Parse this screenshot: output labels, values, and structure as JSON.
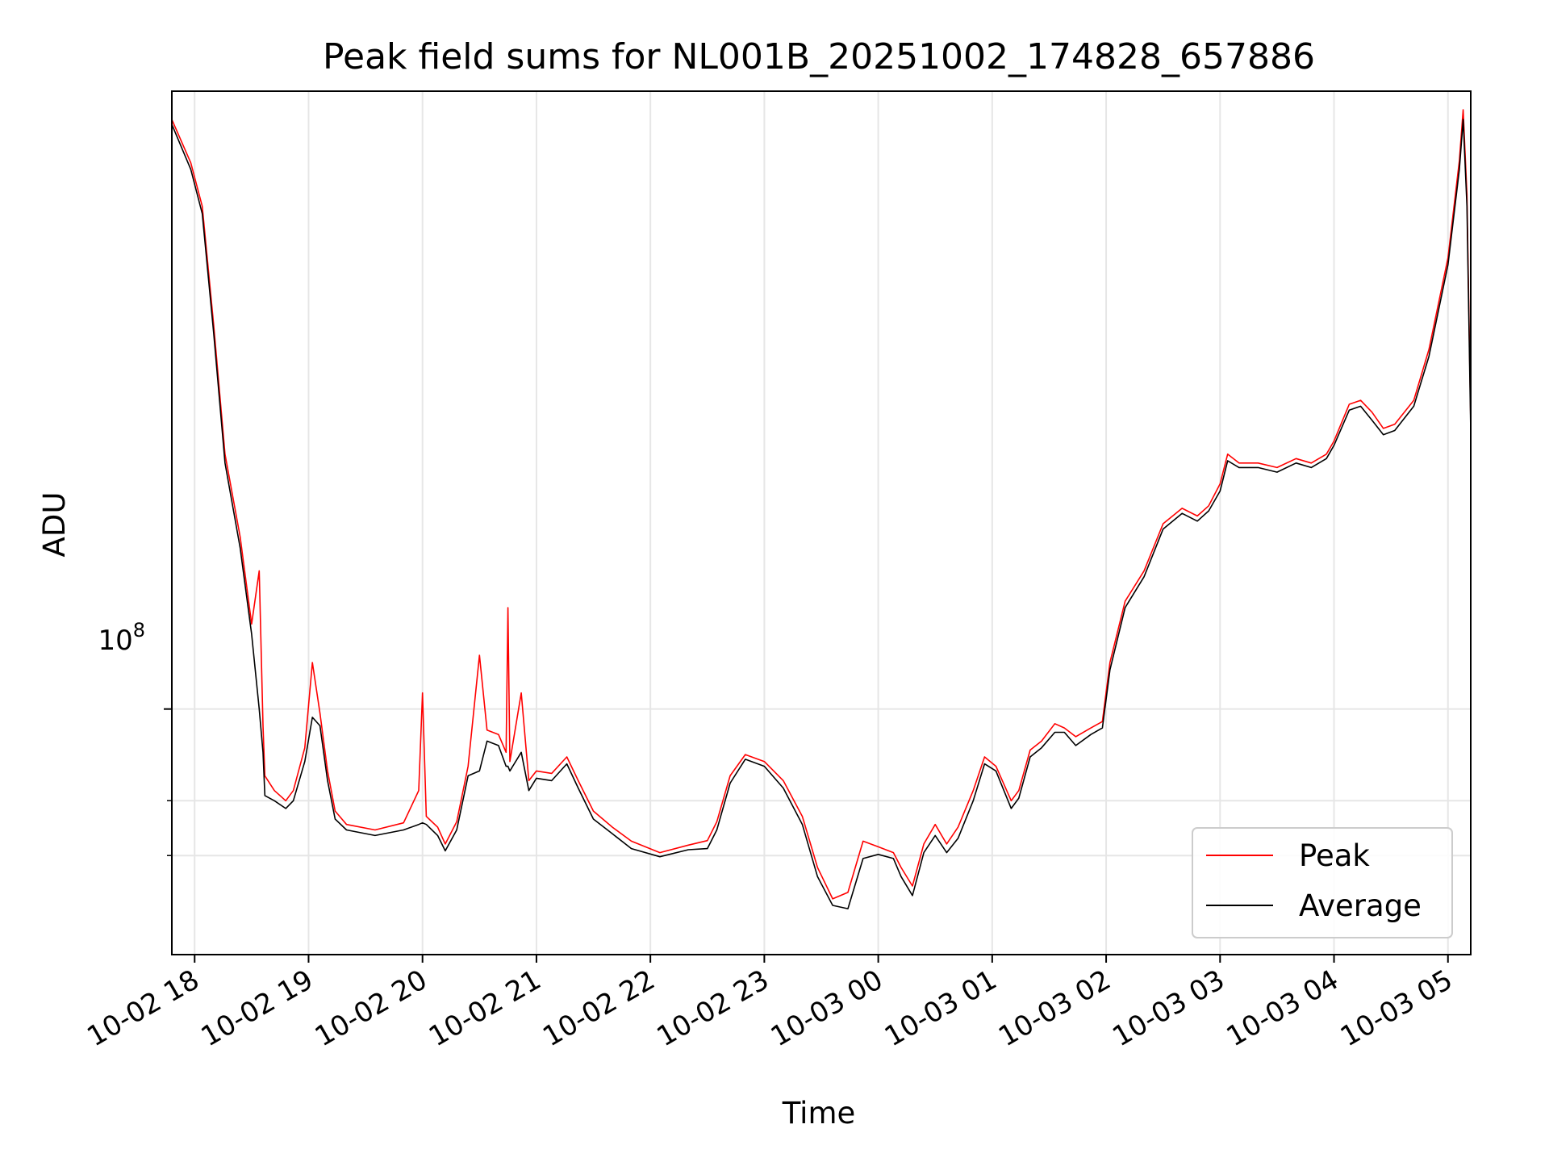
{
  "chart_data": {
    "type": "line",
    "title": "Peak field sums for NL001B_20251002_174828_657886",
    "xlabel": "Time",
    "ylabel": "ADU",
    "yscale": "log",
    "ylim": [
      55000000,
      450000000
    ],
    "xlim": [
      "2025-10-02 17:48",
      "2025-10-03 05:12"
    ],
    "grid": true,
    "legend_position": "lower-right",
    "x_tick_labels": [
      "10-02 18",
      "10-02 19",
      "10-02 20",
      "10-02 21",
      "10-02 22",
      "10-02 23",
      "10-03 00",
      "10-03 01",
      "10-03 02",
      "10-03 03",
      "10-03 04",
      "10-03 05"
    ],
    "y_tick_label_base": "10",
    "y_tick_label_exp": "8",
    "y_major_tick_value": 100000000,
    "y_minor_tick_values": [
      70000000,
      80000000
    ],
    "series": [
      {
        "name": "Peak",
        "color": "#ff0000",
        "points": [
          [
            "2025-10-02 17:48",
            420000000
          ],
          [
            "2025-10-02 17:58",
            378000000
          ],
          [
            "2025-10-02 18:04",
            340000000
          ],
          [
            "2025-10-02 18:10",
            255000000
          ],
          [
            "2025-10-02 18:16",
            186000000
          ],
          [
            "2025-10-02 18:24",
            152000000
          ],
          [
            "2025-10-02 18:30",
            123000000
          ],
          [
            "2025-10-02 18:34",
            140000000
          ],
          [
            "2025-10-02 18:36",
            96000000
          ],
          [
            "2025-10-02 18:37",
            85000000
          ],
          [
            "2025-10-02 18:42",
            82000000
          ],
          [
            "2025-10-02 18:48",
            80000000
          ],
          [
            "2025-10-02 18:52",
            82000000
          ],
          [
            "2025-10-02 18:58",
            91000000
          ],
          [
            "2025-10-02 19:02",
            112000000
          ],
          [
            "2025-10-02 19:06",
            99000000
          ],
          [
            "2025-10-02 19:10",
            86000000
          ],
          [
            "2025-10-02 19:14",
            78000000
          ],
          [
            "2025-10-02 19:20",
            75500000
          ],
          [
            "2025-10-02 19:35",
            74500000
          ],
          [
            "2025-10-02 19:50",
            75800000
          ],
          [
            "2025-10-02 19:58",
            82000000
          ],
          [
            "2025-10-02 20:00",
            104000000
          ],
          [
            "2025-10-02 20:02",
            77000000
          ],
          [
            "2025-10-02 20:08",
            75000000
          ],
          [
            "2025-10-02 20:12",
            72000000
          ],
          [
            "2025-10-02 20:18",
            76000000
          ],
          [
            "2025-10-02 20:24",
            87000000
          ],
          [
            "2025-10-02 20:30",
            114000000
          ],
          [
            "2025-10-02 20:34",
            95000000
          ],
          [
            "2025-10-02 20:40",
            94000000
          ],
          [
            "2025-10-02 20:44",
            90000000
          ],
          [
            "2025-10-02 20:45",
            128000000
          ],
          [
            "2025-10-02 20:46",
            88000000
          ],
          [
            "2025-10-02 20:52",
            104000000
          ],
          [
            "2025-10-02 20:56",
            84000000
          ],
          [
            "2025-10-02 21:00",
            86000000
          ],
          [
            "2025-10-02 21:08",
            85500000
          ],
          [
            "2025-10-02 21:16",
            89000000
          ],
          [
            "2025-10-02 21:22",
            84000000
          ],
          [
            "2025-10-02 21:30",
            78000000
          ],
          [
            "2025-10-02 21:40",
            75000000
          ],
          [
            "2025-10-02 21:50",
            72500000
          ],
          [
            "2025-10-02 22:05",
            70500000
          ],
          [
            "2025-10-02 22:20",
            71800000
          ],
          [
            "2025-10-02 22:30",
            72600000
          ],
          [
            "2025-10-02 22:35",
            76000000
          ],
          [
            "2025-10-02 22:42",
            85000000
          ],
          [
            "2025-10-02 22:50",
            89500000
          ],
          [
            "2025-10-02 23:00",
            88000000
          ],
          [
            "2025-10-02 23:10",
            84000000
          ],
          [
            "2025-10-02 23:20",
            77000000
          ],
          [
            "2025-10-02 23:28",
            68000000
          ],
          [
            "2025-10-02 23:36",
            63000000
          ],
          [
            "2025-10-02 23:44",
            64000000
          ],
          [
            "2025-10-02 23:52",
            72500000
          ],
          [
            "2025-10-03 00:00",
            71500000
          ],
          [
            "2025-10-03 00:08",
            70500000
          ],
          [
            "2025-10-03 00:12",
            68000000
          ],
          [
            "2025-10-03 00:18",
            65000000
          ],
          [
            "2025-10-03 00:24",
            72000000
          ],
          [
            "2025-10-03 00:30",
            75500000
          ],
          [
            "2025-10-03 00:36",
            72000000
          ],
          [
            "2025-10-03 00:42",
            75000000
          ],
          [
            "2025-10-03 00:50",
            82000000
          ],
          [
            "2025-10-03 00:56",
            89000000
          ],
          [
            "2025-10-03 01:02",
            87000000
          ],
          [
            "2025-10-03 01:10",
            80000000
          ],
          [
            "2025-10-03 01:14",
            82000000
          ],
          [
            "2025-10-03 01:20",
            90500000
          ],
          [
            "2025-10-03 01:26",
            92500000
          ],
          [
            "2025-10-03 01:33",
            96500000
          ],
          [
            "2025-10-03 01:38",
            95500000
          ],
          [
            "2025-10-03 01:44",
            93500000
          ],
          [
            "2025-10-03 01:52",
            95500000
          ],
          [
            "2025-10-03 01:58",
            97000000
          ],
          [
            "2025-10-03 02:02",
            112000000
          ],
          [
            "2025-10-03 02:10",
            130000000
          ],
          [
            "2025-10-03 02:20",
            140000000
          ],
          [
            "2025-10-03 02:30",
            157000000
          ],
          [
            "2025-10-03 02:40",
            163000000
          ],
          [
            "2025-10-03 02:48",
            160000000
          ],
          [
            "2025-10-03 02:54",
            164000000
          ],
          [
            "2025-10-03 03:00",
            173000000
          ],
          [
            "2025-10-03 03:04",
            186000000
          ],
          [
            "2025-10-03 03:10",
            182000000
          ],
          [
            "2025-10-03 03:20",
            182000000
          ],
          [
            "2025-10-03 03:30",
            180000000
          ],
          [
            "2025-10-03 03:40",
            184000000
          ],
          [
            "2025-10-03 03:48",
            182000000
          ],
          [
            "2025-10-03 03:56",
            186000000
          ],
          [
            "2025-10-03 04:00",
            192000000
          ],
          [
            "2025-10-03 04:08",
            210000000
          ],
          [
            "2025-10-03 04:14",
            212000000
          ],
          [
            "2025-10-03 04:20",
            206000000
          ],
          [
            "2025-10-03 04:26",
            198000000
          ],
          [
            "2025-10-03 04:32",
            200000000
          ],
          [
            "2025-10-03 04:42",
            212000000
          ],
          [
            "2025-10-03 04:50",
            240000000
          ],
          [
            "2025-10-03 05:00",
            300000000
          ],
          [
            "2025-10-03 05:06",
            380000000
          ],
          [
            "2025-10-03 05:08",
            430000000
          ],
          [
            "2025-10-03 05:10",
            350000000
          ],
          [
            "2025-10-03 05:12",
            200000000
          ]
        ]
      },
      {
        "name": "Average",
        "color": "#000000",
        "points": [
          [
            "2025-10-02 17:48",
            415000000
          ],
          [
            "2025-10-02 17:58",
            372000000
          ],
          [
            "2025-10-02 18:04",
            334000000
          ],
          [
            "2025-10-02 18:10",
            250000000
          ],
          [
            "2025-10-02 18:16",
            182000000
          ],
          [
            "2025-10-02 18:24",
            148000000
          ],
          [
            "2025-10-02 18:30",
            120000000
          ],
          [
            "2025-10-02 18:34",
            100000000
          ],
          [
            "2025-10-02 18:36",
            90000000
          ],
          [
            "2025-10-02 18:37",
            81000000
          ],
          [
            "2025-10-02 18:42",
            80000000
          ],
          [
            "2025-10-02 18:48",
            78500000
          ],
          [
            "2025-10-02 18:52",
            80000000
          ],
          [
            "2025-10-02 18:58",
            88000000
          ],
          [
            "2025-10-02 19:02",
            98000000
          ],
          [
            "2025-10-02 19:06",
            96000000
          ],
          [
            "2025-10-02 19:10",
            84000000
          ],
          [
            "2025-10-02 19:14",
            76500000
          ],
          [
            "2025-10-02 19:20",
            74500000
          ],
          [
            "2025-10-02 19:35",
            73500000
          ],
          [
            "2025-10-02 19:50",
            74500000
          ],
          [
            "2025-10-02 19:58",
            75500000
          ],
          [
            "2025-10-02 20:00",
            75800000
          ],
          [
            "2025-10-02 20:02",
            75500000
          ],
          [
            "2025-10-02 20:08",
            73500000
          ],
          [
            "2025-10-02 20:12",
            70800000
          ],
          [
            "2025-10-02 20:18",
            74500000
          ],
          [
            "2025-10-02 20:24",
            85000000
          ],
          [
            "2025-10-02 20:30",
            86000000
          ],
          [
            "2025-10-02 20:34",
            92500000
          ],
          [
            "2025-10-02 20:40",
            91500000
          ],
          [
            "2025-10-02 20:44",
            87000000
          ],
          [
            "2025-10-02 20:45",
            87000000
          ],
          [
            "2025-10-02 20:46",
            86000000
          ],
          [
            "2025-10-02 20:52",
            90000000
          ],
          [
            "2025-10-02 20:56",
            82000000
          ],
          [
            "2025-10-02 21:00",
            84500000
          ],
          [
            "2025-10-02 21:08",
            84000000
          ],
          [
            "2025-10-02 21:16",
            87500000
          ],
          [
            "2025-10-02 21:22",
            82500000
          ],
          [
            "2025-10-02 21:30",
            76500000
          ],
          [
            "2025-10-02 21:40",
            73800000
          ],
          [
            "2025-10-02 21:50",
            71200000
          ],
          [
            "2025-10-02 22:05",
            69800000
          ],
          [
            "2025-10-02 22:20",
            71000000
          ],
          [
            "2025-10-02 22:30",
            71200000
          ],
          [
            "2025-10-02 22:35",
            74500000
          ],
          [
            "2025-10-02 22:42",
            83500000
          ],
          [
            "2025-10-02 22:50",
            88500000
          ],
          [
            "2025-10-02 23:00",
            87000000
          ],
          [
            "2025-10-02 23:10",
            82500000
          ],
          [
            "2025-10-02 23:20",
            75500000
          ],
          [
            "2025-10-02 23:28",
            66500000
          ],
          [
            "2025-10-02 23:36",
            62000000
          ],
          [
            "2025-10-02 23:44",
            61500000
          ],
          [
            "2025-10-02 23:52",
            69500000
          ],
          [
            "2025-10-03 00:00",
            70200000
          ],
          [
            "2025-10-03 00:08",
            69500000
          ],
          [
            "2025-10-03 00:12",
            66500000
          ],
          [
            "2025-10-03 00:18",
            63500000
          ],
          [
            "2025-10-03 00:24",
            70500000
          ],
          [
            "2025-10-03 00:30",
            73500000
          ],
          [
            "2025-10-03 00:36",
            70500000
          ],
          [
            "2025-10-03 00:42",
            73000000
          ],
          [
            "2025-10-03 00:50",
            80000000
          ],
          [
            "2025-10-03 00:56",
            87500000
          ],
          [
            "2025-10-03 01:02",
            86000000
          ],
          [
            "2025-10-03 01:10",
            78500000
          ],
          [
            "2025-10-03 01:14",
            80500000
          ],
          [
            "2025-10-03 01:20",
            89000000
          ],
          [
            "2025-10-03 01:26",
            91000000
          ],
          [
            "2025-10-03 01:33",
            94500000
          ],
          [
            "2025-10-03 01:38",
            94500000
          ],
          [
            "2025-10-03 01:44",
            91500000
          ],
          [
            "2025-10-03 01:52",
            94000000
          ],
          [
            "2025-10-03 01:58",
            95500000
          ],
          [
            "2025-10-03 02:02",
            110000000
          ],
          [
            "2025-10-03 02:10",
            128000000
          ],
          [
            "2025-10-03 02:20",
            138000000
          ],
          [
            "2025-10-03 02:30",
            155000000
          ],
          [
            "2025-10-03 02:40",
            161000000
          ],
          [
            "2025-10-03 02:48",
            158000000
          ],
          [
            "2025-10-03 02:54",
            162000000
          ],
          [
            "2025-10-03 03:00",
            170000000
          ],
          [
            "2025-10-03 03:04",
            183000000
          ],
          [
            "2025-10-03 03:10",
            180000000
          ],
          [
            "2025-10-03 03:20",
            180000000
          ],
          [
            "2025-10-03 03:30",
            178000000
          ],
          [
            "2025-10-03 03:40",
            182000000
          ],
          [
            "2025-10-03 03:48",
            180000000
          ],
          [
            "2025-10-03 03:56",
            184000000
          ],
          [
            "2025-10-03 04:00",
            190000000
          ],
          [
            "2025-10-03 04:08",
            207000000
          ],
          [
            "2025-10-03 04:14",
            209000000
          ],
          [
            "2025-10-03 04:20",
            202000000
          ],
          [
            "2025-10-03 04:26",
            195000000
          ],
          [
            "2025-10-03 04:32",
            197000000
          ],
          [
            "2025-10-03 04:42",
            209000000
          ],
          [
            "2025-10-03 04:50",
            236000000
          ],
          [
            "2025-10-03 05:00",
            295000000
          ],
          [
            "2025-10-03 05:06",
            372000000
          ],
          [
            "2025-10-03 05:08",
            420000000
          ],
          [
            "2025-10-03 05:10",
            340000000
          ],
          [
            "2025-10-03 05:12",
            196000000
          ]
        ]
      }
    ]
  }
}
